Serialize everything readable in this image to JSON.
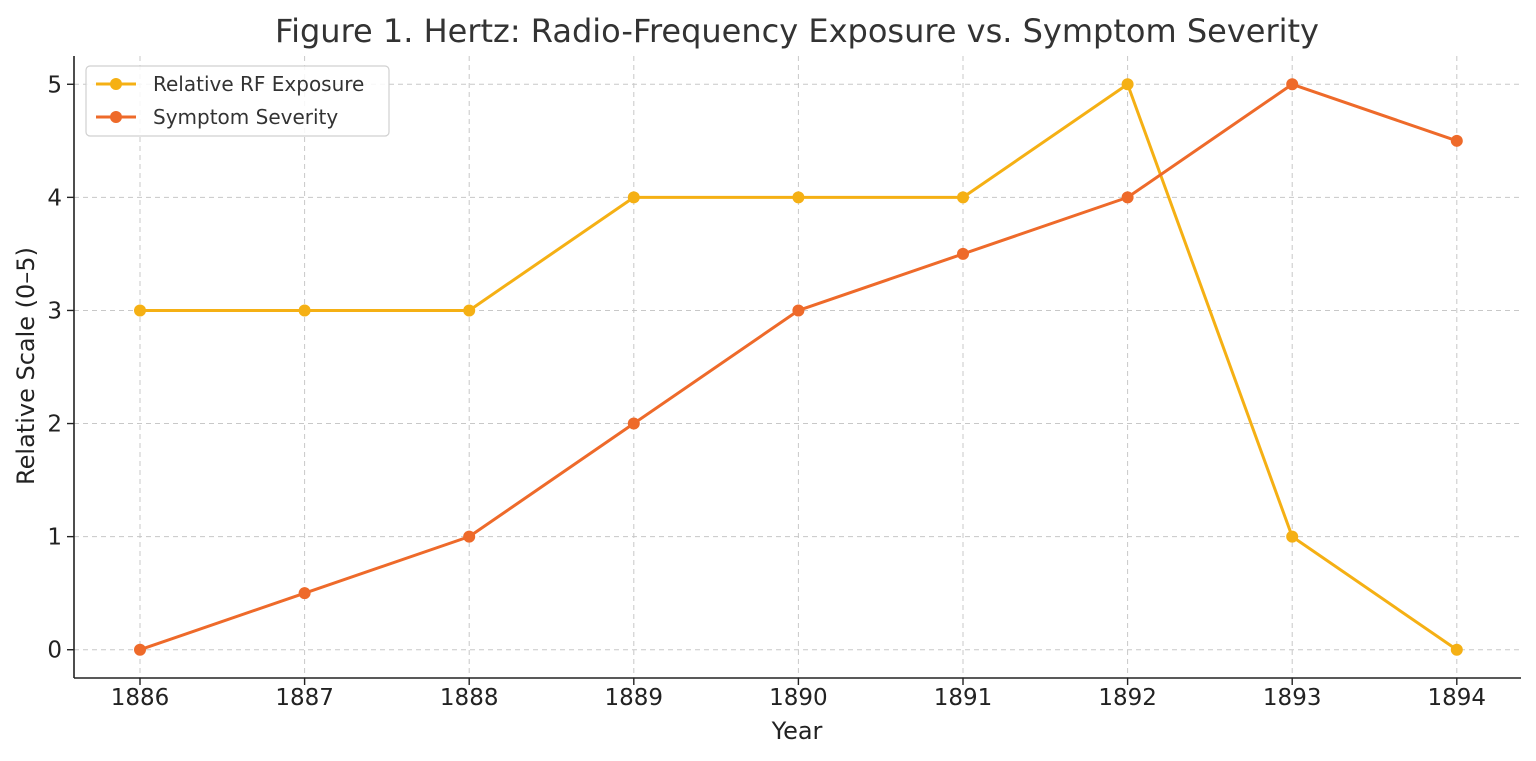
{
  "chart_data": {
    "type": "line",
    "title": "Figure 1. Hertz: Radio-Frequency Exposure vs. Symptom Severity",
    "xlabel": "Year",
    "ylabel": "Relative Scale (0–5)",
    "x": [
      "1886",
      "1887",
      "1888",
      "1889",
      "1890",
      "1891",
      "1892",
      "1893",
      "1894"
    ],
    "series": [
      {
        "name": "Relative RF Exposure",
        "color": "#f5b014",
        "values": [
          3,
          3,
          3,
          4,
          4,
          4,
          5,
          1,
          0
        ]
      },
      {
        "name": "Symptom Severity",
        "color": "#ee6a2a",
        "values": [
          0,
          0.5,
          1,
          2,
          3,
          3.5,
          4,
          5,
          4.5
        ]
      }
    ],
    "yticks": [
      "0",
      "1",
      "2",
      "3",
      "4",
      "5"
    ],
    "ylim": [
      -0.25,
      5.25
    ],
    "grid": true,
    "legend_position": "top-left"
  }
}
